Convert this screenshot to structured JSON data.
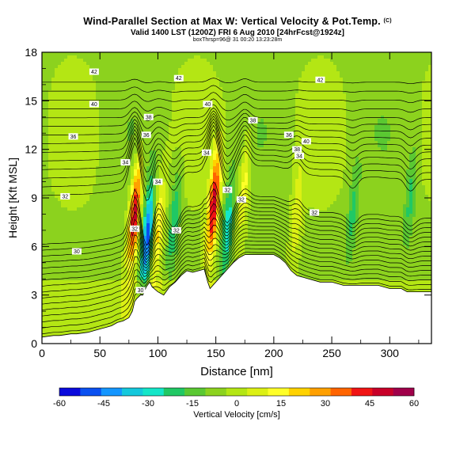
{
  "header": {
    "title": "Wind-Parallel Section at Max W: Vertical Velocity & Pot.Temp.",
    "copyright": "(C)",
    "subtitle": "Valid 1400 LST (1200Z) FRI 6 Aug 2010 [24hrFcst@1924z]",
    "source_line": "boxThrsp=96@ 31 00:20 13:23:28m"
  },
  "chart_data": {
    "type": "heatmap",
    "xlabel": "Distance [nm]",
    "ylabel": "Height [Kft MSL]",
    "xlim": [
      0,
      336
    ],
    "ylim": [
      0,
      18
    ],
    "x_ticks": [
      "0",
      "50",
      "100",
      "150",
      "200",
      "250",
      "300"
    ],
    "y_ticks": [
      "0",
      "3",
      "6",
      "9",
      "12",
      "15",
      "18"
    ],
    "colorbar": {
      "label": "Vertical Velocity [cm/s]",
      "tick_labels": [
        "-60",
        "-45",
        "-30",
        "-15",
        "0",
        "15",
        "30",
        "45",
        "60"
      ],
      "range": [
        -60,
        60
      ],
      "colors": [
        "#0a0adc",
        "#0a50f0",
        "#1496ff",
        "#14c8dc",
        "#14e6c8",
        "#20c864",
        "#5ac832",
        "#8cd21e",
        "#b4e614",
        "#dcf014",
        "#ffff28",
        "#ffd200",
        "#ffa000",
        "#ff6400",
        "#f01414",
        "#c80028",
        "#a0004a"
      ]
    },
    "terrain_profile": {
      "x_nm": [
        0,
        5,
        10,
        15,
        20,
        25,
        30,
        35,
        40,
        45,
        50,
        55,
        60,
        65,
        70,
        75,
        78,
        80,
        82,
        85,
        87,
        90,
        93,
        95,
        100,
        105,
        110,
        115,
        120,
        125,
        130,
        135,
        140,
        143,
        145,
        150,
        155,
        160,
        165,
        170,
        175,
        180,
        190,
        200,
        205,
        210,
        215,
        220,
        230,
        240,
        250,
        260,
        270,
        280,
        290,
        300,
        310,
        315,
        320,
        330,
        336
      ],
      "height_kft": [
        0.4,
        0.45,
        0.5,
        0.5,
        0.55,
        0.6,
        0.6,
        0.65,
        0.7,
        0.8,
        0.9,
        1.0,
        1.1,
        1.3,
        1.4,
        1.6,
        2.0,
        2.6,
        2.8,
        3.0,
        3.0,
        3.5,
        3.8,
        3.5,
        3.2,
        3.0,
        3.5,
        3.8,
        4.2,
        4.5,
        4.4,
        4.5,
        4.6,
        3.8,
        3.4,
        3.8,
        4.2,
        4.6,
        5.0,
        5.3,
        5.5,
        5.5,
        5.5,
        5.5,
        5.3,
        5.0,
        4.5,
        4.2,
        4.0,
        3.8,
        3.8,
        3.6,
        3.6,
        3.6,
        3.6,
        3.4,
        3.4,
        3.2,
        3.2,
        3.2,
        3.2
      ]
    },
    "velocity_features": [
      {
        "x_nm": 80,
        "z_kft": 8.0,
        "w_cms": 55
      },
      {
        "x_nm": 91,
        "z_kft": 6.5,
        "w_cms": -45
      },
      {
        "x_nm": 100,
        "z_kft": 7.0,
        "w_cms": 25
      },
      {
        "x_nm": 114,
        "z_kft": 7.5,
        "w_cms": -20
      },
      {
        "x_nm": 148,
        "z_kft": 8.5,
        "w_cms": 55
      },
      {
        "x_nm": 160,
        "z_kft": 7.0,
        "w_cms": -25
      },
      {
        "x_nm": 175,
        "z_kft": 10.0,
        "w_cms": 20
      },
      {
        "x_nm": 220,
        "z_kft": 8.0,
        "w_cms": 15
      },
      {
        "x_nm": 268,
        "z_kft": 8.0,
        "w_cms": -15
      },
      {
        "x_nm": 318,
        "z_kft": 9.0,
        "w_cms": -15
      }
    ],
    "isentrope_labels": [
      {
        "text": "42",
        "x_nm": 45,
        "z_kft": 16.8
      },
      {
        "text": "42",
        "x_nm": 118,
        "z_kft": 16.4
      },
      {
        "text": "42",
        "x_nm": 240,
        "z_kft": 16.3
      },
      {
        "text": "40",
        "x_nm": 45,
        "z_kft": 14.8
      },
      {
        "text": "40",
        "x_nm": 143,
        "z_kft": 14.8
      },
      {
        "text": "40",
        "x_nm": 228,
        "z_kft": 12.5
      },
      {
        "text": "38",
        "x_nm": 92,
        "z_kft": 14.0
      },
      {
        "text": "38",
        "x_nm": 182,
        "z_kft": 13.8
      },
      {
        "text": "38",
        "x_nm": 220,
        "z_kft": 12.0
      },
      {
        "text": "36",
        "x_nm": 27,
        "z_kft": 12.8
      },
      {
        "text": "36",
        "x_nm": 90,
        "z_kft": 12.9
      },
      {
        "text": "36",
        "x_nm": 213,
        "z_kft": 12.9
      },
      {
        "text": "34",
        "x_nm": 72,
        "z_kft": 11.2
      },
      {
        "text": "34",
        "x_nm": 142,
        "z_kft": 11.8
      },
      {
        "text": "34",
        "x_nm": 222,
        "z_kft": 11.6
      },
      {
        "text": "34",
        "x_nm": 100,
        "z_kft": 10.0
      },
      {
        "text": "32",
        "x_nm": 20,
        "z_kft": 9.1
      },
      {
        "text": "32",
        "x_nm": 160,
        "z_kft": 9.5
      },
      {
        "text": "32",
        "x_nm": 172,
        "z_kft": 8.9
      },
      {
        "text": "32",
        "x_nm": 235,
        "z_kft": 8.1
      },
      {
        "text": "32",
        "x_nm": 80,
        "z_kft": 7.1
      },
      {
        "text": "32",
        "x_nm": 116,
        "z_kft": 7.0
      },
      {
        "text": "30",
        "x_nm": 30,
        "z_kft": 5.7
      },
      {
        "text": "30",
        "x_nm": 85,
        "z_kft": 3.3
      }
    ]
  }
}
